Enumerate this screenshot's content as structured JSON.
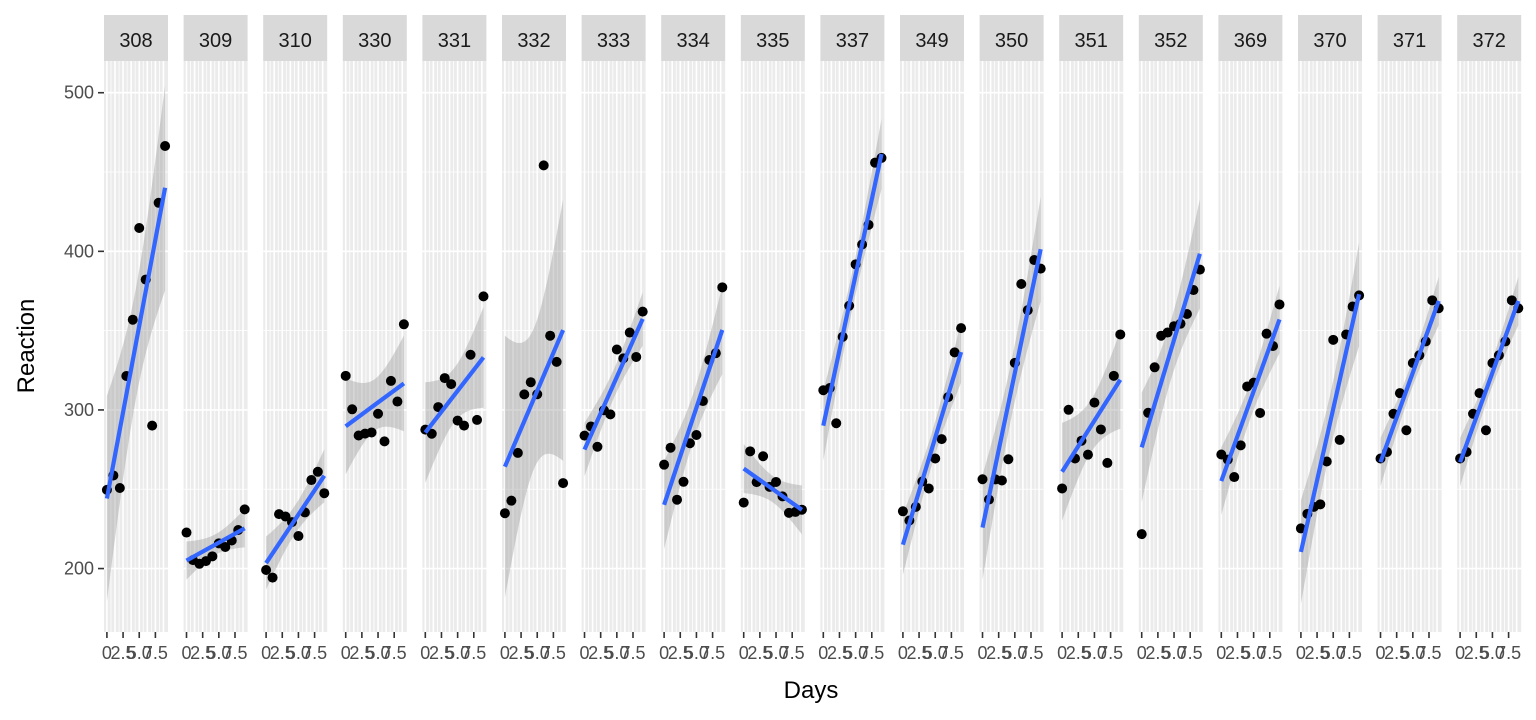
{
  "chart_data": {
    "type": "scatter",
    "facet_by": "Subject",
    "xlabel": "Days",
    "ylabel": "Reaction",
    "xlim": [
      0,
      9
    ],
    "ylim": [
      160,
      520
    ],
    "x_ticks": [
      0,
      2.5,
      5,
      7.5
    ],
    "x_tick_labels": [
      "0",
      "2.5",
      "5.0",
      "7.5"
    ],
    "y_ticks": [
      200,
      300,
      400,
      500
    ],
    "y_tick_labels": [
      "200",
      "300",
      "400",
      "500"
    ],
    "smooth_method": "lm",
    "colors": {
      "panel_background": "#ebebeb",
      "grid": "#ffffff",
      "strip_background": "#d9d9d9",
      "points": "#000000",
      "fit_line": "#3366ff",
      "ribbon": "#999999"
    },
    "facets": [
      {
        "subject": "308",
        "x": [
          0,
          1,
          2,
          3,
          4,
          5,
          6,
          7,
          8,
          9
        ],
        "y": [
          249.6,
          258.7,
          250.8,
          321.4,
          356.9,
          414.7,
          382.2,
          290.1,
          430.6,
          466.4
        ]
      },
      {
        "subject": "309",
        "x": [
          0,
          1,
          2,
          3,
          4,
          5,
          6,
          7,
          8,
          9
        ],
        "y": [
          222.7,
          205.3,
          203.0,
          204.7,
          207.7,
          215.9,
          213.6,
          217.7,
          224.3,
          237.3
        ]
      },
      {
        "subject": "310",
        "x": [
          0,
          1,
          2,
          3,
          4,
          5,
          6,
          7,
          8,
          9
        ],
        "y": [
          199.1,
          194.3,
          234.3,
          232.8,
          229.3,
          220.5,
          235.4,
          255.8,
          261.0,
          247.5
        ]
      },
      {
        "subject": "330",
        "x": [
          0,
          1,
          2,
          3,
          4,
          5,
          6,
          7,
          8,
          9
        ],
        "y": [
          321.5,
          300.4,
          283.9,
          285.1,
          285.8,
          297.6,
          280.2,
          318.3,
          305.3,
          354.0
        ]
      },
      {
        "subject": "331",
        "x": [
          0,
          1,
          2,
          3,
          4,
          5,
          6,
          7,
          8,
          9
        ],
        "y": [
          287.6,
          285.0,
          301.8,
          320.1,
          316.3,
          293.3,
          290.1,
          334.8,
          293.7,
          371.6
        ]
      },
      {
        "subject": "332",
        "x": [
          0,
          1,
          2,
          3,
          4,
          5,
          6,
          7,
          8,
          9
        ],
        "y": [
          234.9,
          242.8,
          272.9,
          309.8,
          317.5,
          309.9,
          454.2,
          346.8,
          330.3,
          253.9
        ]
      },
      {
        "subject": "333",
        "x": [
          0,
          1,
          2,
          3,
          4,
          5,
          6,
          7,
          8,
          9
        ],
        "y": [
          283.8,
          289.6,
          276.8,
          299.8,
          297.2,
          338.1,
          332.5,
          348.8,
          333.4,
          362.0
        ]
      },
      {
        "subject": "334",
        "x": [
          0,
          1,
          2,
          3,
          4,
          5,
          6,
          7,
          8,
          9
        ],
        "y": [
          265.5,
          276.2,
          243.4,
          254.7,
          279.0,
          284.2,
          305.6,
          331.5,
          335.8,
          377.3
        ]
      },
      {
        "subject": "335",
        "x": [
          0,
          1,
          2,
          3,
          4,
          5,
          6,
          7,
          8,
          9
        ],
        "y": [
          241.6,
          273.9,
          254.5,
          270.8,
          251.5,
          254.6,
          245.5,
          235.1,
          235.7,
          237.1
        ]
      },
      {
        "subject": "337",
        "x": [
          0,
          1,
          2,
          3,
          4,
          5,
          6,
          7,
          8,
          9
        ],
        "y": [
          312.4,
          313.8,
          291.6,
          346.1,
          365.7,
          391.8,
          404.3,
          416.7,
          455.9,
          458.9
        ]
      },
      {
        "subject": "349",
        "x": [
          0,
          1,
          2,
          3,
          4,
          5,
          6,
          7,
          8,
          9
        ],
        "y": [
          236.1,
          230.3,
          238.9,
          254.9,
          250.5,
          269.4,
          281.6,
          308.1,
          336.3,
          351.6
        ]
      },
      {
        "subject": "350",
        "x": [
          0,
          1,
          2,
          3,
          4,
          5,
          6,
          7,
          8,
          9
        ],
        "y": [
          256.3,
          243.5,
          256.2,
          255.5,
          268.9,
          329.7,
          379.4,
          362.9,
          394.5,
          389.1
        ]
      },
      {
        "subject": "351",
        "x": [
          0,
          1,
          2,
          3,
          4,
          5,
          6,
          7,
          8,
          9
        ],
        "y": [
          250.5,
          300.1,
          269.4,
          280.6,
          271.8,
          304.6,
          287.7,
          266.6,
          321.5,
          347.6
        ]
      },
      {
        "subject": "352",
        "x": [
          0,
          1,
          2,
          3,
          4,
          5,
          6,
          7,
          8,
          9
        ],
        "y": [
          221.7,
          298.2,
          326.9,
          346.8,
          348.8,
          352.8,
          354.4,
          360.5,
          375.6,
          388.5
        ]
      },
      {
        "subject": "369",
        "x": [
          0,
          1,
          2,
          3,
          4,
          5,
          6,
          7,
          8,
          9
        ],
        "y": [
          271.9,
          268.7,
          257.7,
          277.7,
          314.8,
          317.2,
          298.1,
          348.1,
          340.3,
          366.5
        ]
      },
      {
        "subject": "370",
        "x": [
          0,
          1,
          2,
          3,
          4,
          5,
          6,
          7,
          8,
          9
        ],
        "y": [
          225.3,
          234.5,
          238.9,
          240.5,
          267.5,
          344.2,
          281.1,
          347.6,
          365.2,
          372.2
        ]
      },
      {
        "subject": "371",
        "x": [
          0,
          1,
          2,
          3,
          4,
          5,
          6,
          7,
          8,
          9
        ],
        "y": [
          269.4,
          273.5,
          297.6,
          310.6,
          287.2,
          329.6,
          334.5,
          343.2,
          369.1,
          364.1
        ]
      },
      {
        "subject": "372",
        "x": [
          0,
          1,
          2,
          3,
          4,
          5,
          6,
          7,
          8,
          9
        ],
        "y": [
          269.4,
          273.5,
          297.6,
          310.6,
          287.2,
          329.6,
          334.5,
          343.2,
          369.1,
          364.1
        ]
      }
    ]
  }
}
